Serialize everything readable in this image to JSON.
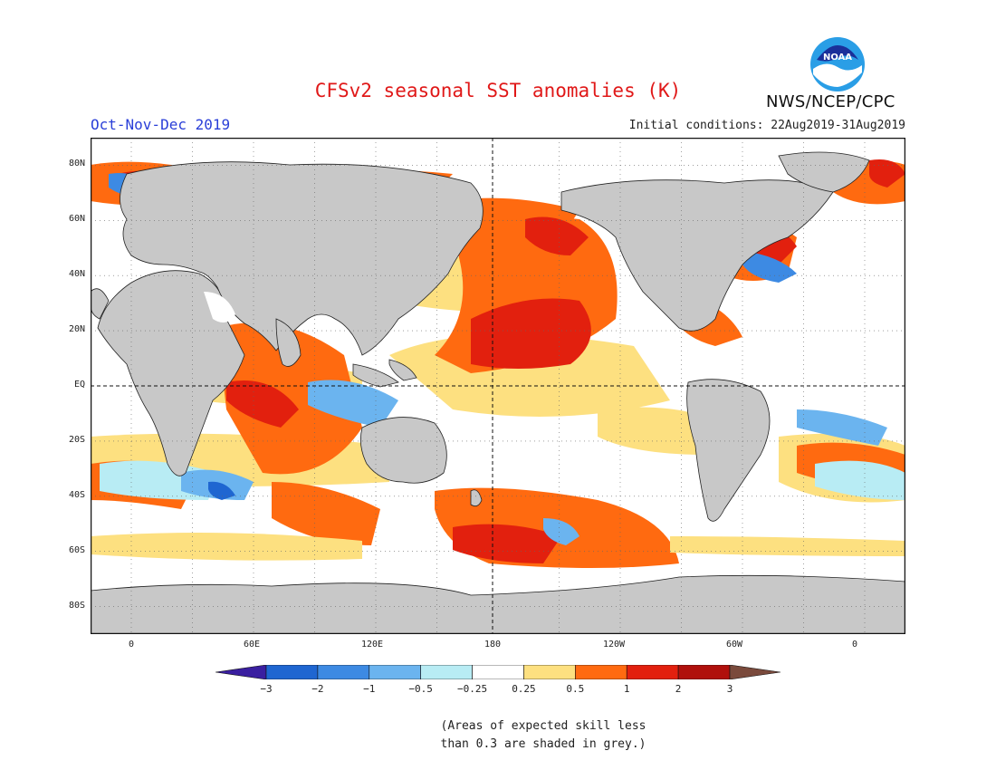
{
  "header": {
    "title": "CFSv2 seasonal SST anomalies (K)",
    "season": "Oct-Nov-Dec 2019",
    "initial_conditions": "Initial conditions: 22Aug2019-31Aug2019",
    "agency": "NWS/NCEP/CPC",
    "logo_text": "NOAA"
  },
  "map": {
    "projection": "cylindrical equidistant",
    "lon_range": [
      -20,
      380
    ],
    "lat_range": [
      -90,
      90
    ],
    "land_color": "#c8c8c8",
    "ocean_color": "#ffffff",
    "lat_labels": [
      "80N",
      "60N",
      "40N",
      "20N",
      "EQ",
      "20S",
      "40S",
      "60S",
      "80S"
    ],
    "lon_labels": [
      "0",
      "60E",
      "120E",
      "180",
      "120W",
      "60W",
      "0"
    ]
  },
  "colorbar": {
    "labels": [
      "−3",
      "−2",
      "−1",
      "−0.5",
      "−0.25",
      "0.25",
      "0.5",
      "1",
      "2",
      "3"
    ],
    "colors": [
      "#3a1fa0",
      "#1f66d1",
      "#3d8ae3",
      "#6bb4ef",
      "#b8ecf4",
      "#ffffff",
      "#fde080",
      "#ff6a10",
      "#e2200e",
      "#b0100c",
      "#7a4a3c"
    ]
  },
  "note": {
    "line1": "(Areas of expected skill less",
    "line2": "than 0.3 are shaded in grey.)"
  }
}
